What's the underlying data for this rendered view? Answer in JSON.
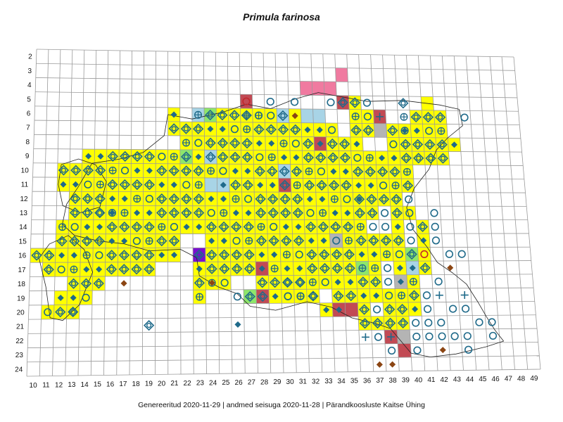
{
  "title": "Primula farinosa",
  "footer": {
    "generated": "Genereeritud 2020-11-29",
    "sep1": "|",
    "data_state": "andmed seisuga 2020-11-28",
    "sep2": "|",
    "org": "Pärandkoosluste Kaitse Ühing"
  },
  "axes": {
    "x_labels": [
      "10",
      "11",
      "12",
      "13",
      "14",
      "15",
      "16",
      "17",
      "18",
      "19",
      "20",
      "21",
      "22",
      "23",
      "24",
      "25",
      "26",
      "27",
      "28",
      "29",
      "30",
      "31",
      "32",
      "33",
      "34",
      "35",
      "36",
      "37",
      "38",
      "39",
      "40",
      "41",
      "42",
      "43",
      "44",
      "45",
      "46",
      "47",
      "48",
      "49"
    ],
    "y_labels": [
      "2",
      "3",
      "4",
      "5",
      "6",
      "7",
      "8",
      "9",
      "10",
      "11",
      "12",
      "13",
      "14",
      "15",
      "16",
      "17",
      "18",
      "19",
      "20",
      "21",
      "22",
      "23",
      "24"
    ]
  },
  "colors": {
    "grid": "#9a9a9a",
    "yellow": "#ffff00",
    "light_blue": "#a8d4e6",
    "green": "#8ee66a",
    "red": "#c24a54",
    "pink": "#f07aa0",
    "grey": "#b4b4b4",
    "purple": "#7a0fd0",
    "marker_blue": "#1f6a8a",
    "marker_red": "#c0282c",
    "marker_brown": "#8b4513"
  },
  "chart_data": {
    "type": "grid-map",
    "cells": [
      {
        "x": 27,
        "y": 5,
        "fill": "red",
        "marker": "open-circle-red"
      },
      {
        "x": 35,
        "y": 5,
        "fill": "red",
        "marker": "diamond-ring"
      },
      {
        "x": 36,
        "y": 5,
        "fill": "yellow",
        "marker": "diamond-ring"
      },
      {
        "x": 32,
        "y": 4,
        "fill": "pink"
      },
      {
        "x": 33,
        "y": 4,
        "fill": "pink"
      },
      {
        "x": 34,
        "y": 4,
        "fill": "pink"
      },
      {
        "x": 35,
        "y": 3,
        "fill": "pink"
      },
      {
        "x": 38,
        "y": 6,
        "fill": "red",
        "marker": "plus"
      },
      {
        "x": 38,
        "y": 7,
        "fill": "grey"
      },
      {
        "x": 42,
        "y": 5,
        "fill": "yellow"
      },
      {
        "x": 21,
        "y": 6,
        "fill": "yellow",
        "marker": "diamond"
      },
      {
        "x": 23,
        "y": 6,
        "fill": "light_blue",
        "marker": "circle-plus"
      },
      {
        "x": 24,
        "y": 6,
        "fill": "green",
        "marker": "diamond-ring"
      },
      {
        "x": 30,
        "y": 6,
        "fill": "light_blue",
        "marker": "diamond-ring"
      },
      {
        "x": 31,
        "y": 6,
        "fill": "yellow",
        "marker": "diamond-brown"
      },
      {
        "x": 32,
        "y": 6,
        "fill": "light_blue"
      },
      {
        "x": 33,
        "y": 6,
        "fill": "light_blue"
      },
      {
        "x": 22,
        "y": 9,
        "fill": "green",
        "marker": "diamond-ring"
      },
      {
        "x": 24,
        "y": 9,
        "fill": "light_blue",
        "marker": "diamond-ring"
      },
      {
        "x": 30,
        "y": 10,
        "fill": "light_blue",
        "marker": "diamond-ring"
      },
      {
        "x": 24,
        "y": 11,
        "fill": "light_blue"
      },
      {
        "x": 25,
        "y": 11,
        "fill": "light_blue",
        "marker": "diamond"
      },
      {
        "x": 30,
        "y": 11,
        "fill": "red",
        "marker": "diamond-ring"
      },
      {
        "x": 33,
        "y": 8,
        "fill": "red",
        "marker": "diamond"
      },
      {
        "x": 23,
        "y": 16,
        "fill": "purple",
        "marker": "diamond-ring"
      },
      {
        "x": 34,
        "y": 15,
        "fill": "grey",
        "marker": "circle"
      },
      {
        "x": 28,
        "y": 17,
        "fill": "red",
        "marker": "diamond"
      },
      {
        "x": 28,
        "y": 19,
        "fill": "red",
        "marker": "diamond-ring"
      },
      {
        "x": 27,
        "y": 19,
        "fill": "green",
        "marker": "diamond-ring"
      },
      {
        "x": 34,
        "y": 20,
        "fill": "red",
        "marker": "diamond"
      },
      {
        "x": 35,
        "y": 20,
        "fill": "red"
      },
      {
        "x": 38,
        "y": 22,
        "fill": "red",
        "marker": "plus"
      },
      {
        "x": 39,
        "y": 23,
        "fill": "red"
      },
      {
        "x": 39,
        "y": 22,
        "fill": "grey"
      },
      {
        "x": 39,
        "y": 18,
        "fill": "grey",
        "marker": "diamond"
      },
      {
        "x": 40,
        "y": 16,
        "fill": "green",
        "marker": "diamond-ring"
      },
      {
        "x": 40,
        "y": 17,
        "fill": "light_blue",
        "marker": "diamond"
      },
      {
        "x": 41,
        "y": 16,
        "fill": "yellow",
        "marker": "open-circle-red"
      },
      {
        "x": 36,
        "y": 17,
        "fill": "green",
        "marker": "circle-plus"
      }
    ]
  }
}
